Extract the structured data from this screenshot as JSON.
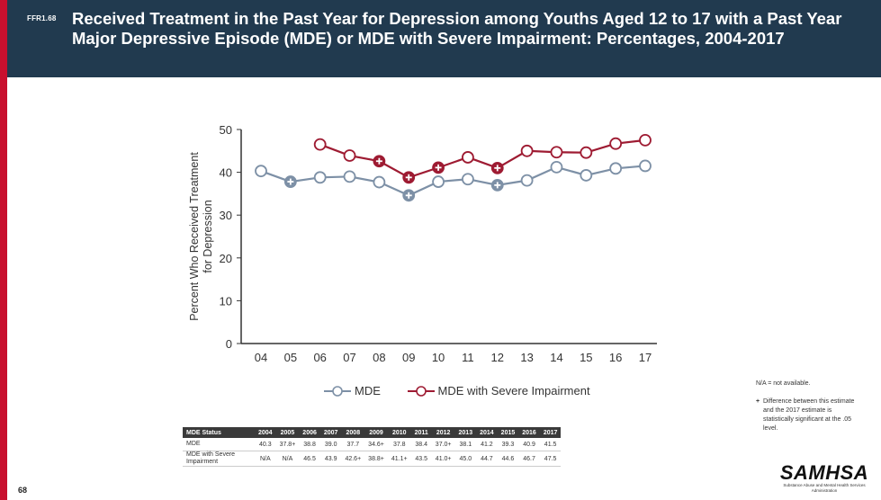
{
  "header": {
    "figure_id": "FFR1.68",
    "title": "Received Treatment in the Past Year for Depression among Youths Aged 12 to 17 with a Past Year Major Depressive Episode (MDE) or MDE with Severe Impairment: Percentages, 2004-2017"
  },
  "chart_data": {
    "type": "line",
    "title": "",
    "xlabel": "",
    "ylabel": "Percent Who Received Treatment for Depression",
    "categories": [
      "04",
      "05",
      "06",
      "07",
      "08",
      "09",
      "10",
      "11",
      "12",
      "13",
      "14",
      "15",
      "16",
      "17"
    ],
    "yticks": [
      "0",
      "10",
      "20",
      "30",
      "40",
      "50"
    ],
    "ylim": [
      0,
      50
    ],
    "grid": false,
    "legend_position": "bottom",
    "series": [
      {
        "name": "MDE",
        "color": "#7d90a6",
        "values": [
          40.3,
          37.8,
          38.8,
          39.0,
          37.7,
          34.6,
          37.8,
          38.4,
          37.0,
          38.1,
          41.2,
          39.3,
          40.9,
          41.5
        ],
        "significant": [
          false,
          true,
          false,
          false,
          false,
          true,
          false,
          false,
          true,
          false,
          false,
          false,
          false,
          false
        ]
      },
      {
        "name": "MDE with Severe Impairment",
        "color": "#9e1b32",
        "values": [
          null,
          null,
          46.5,
          43.9,
          42.6,
          38.8,
          41.1,
          43.5,
          41.0,
          45.0,
          44.7,
          44.6,
          46.7,
          47.5
        ],
        "significant": [
          false,
          false,
          false,
          false,
          true,
          true,
          true,
          false,
          true,
          false,
          false,
          false,
          false,
          false
        ]
      }
    ]
  },
  "table": {
    "header": [
      "MDE Status",
      "2004",
      "2005",
      "2006",
      "2007",
      "2008",
      "2009",
      "2010",
      "2011",
      "2012",
      "2013",
      "2014",
      "2015",
      "2016",
      "2017"
    ],
    "rows": [
      [
        "MDE",
        "40.3",
        "37.8+",
        "38.8",
        "39.0",
        "37.7",
        "34.6+",
        "37.8",
        "38.4",
        "37.0+",
        "38.1",
        "41.2",
        "39.3",
        "40.9",
        "41.5"
      ],
      [
        "MDE with Severe Impairment",
        "N/A",
        "N/A",
        "46.5",
        "43.9",
        "42.6+",
        "38.8+",
        "41.1+",
        "43.5",
        "41.0+",
        "45.0",
        "44.7",
        "44.6",
        "46.7",
        "47.5"
      ]
    ]
  },
  "notes": {
    "na": "N/A = not available.",
    "plus_symbol": "+",
    "plus_text": "Difference between this estimate and the 2017 estimate is statistically significant at the .05 level."
  },
  "logo": {
    "word": "SAMHSA",
    "subtitle": "Substance Abuse and Mental Health Services Administration"
  },
  "page_number": "68"
}
